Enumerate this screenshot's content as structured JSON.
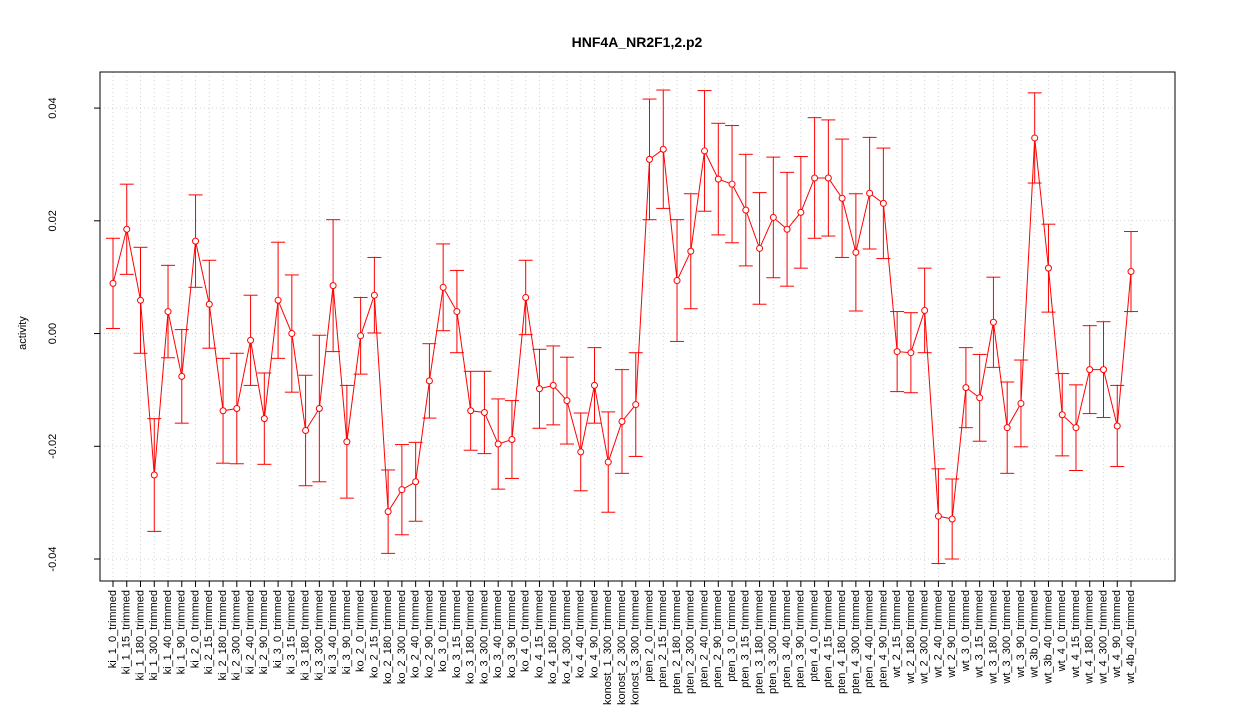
{
  "chart_data": {
    "type": "errorbar-line",
    "title": "HNF4A_NR2F1,2.p2",
    "y_label": "activity",
    "categories": [
      "ki_1_0_trimmed",
      "ki_1_15_trimmed",
      "ki_1_180_trimmed",
      "ki_1_300_trimmed",
      "ki_1_40_trimmed",
      "ki_1_90_trimmed",
      "ki_2_0_trimmed",
      "ki_2_15_trimmed",
      "ki_2_180_trimmed",
      "ki_2_300_trimmed",
      "ki_2_40_trimmed",
      "ki_2_90_trimmed",
      "ki_3_0_trimmed",
      "ki_3_15_trimmed",
      "ki_3_180_trimmed",
      "ki_3_300_trimmed",
      "ki_3_40_trimmed",
      "ki_3_90_trimmed",
      "ko_2_0_trimmed",
      "ko_2_15_trimmed",
      "ko_2_180_trimmed",
      "ko_2_300_trimmed",
      "ko_2_40_trimmed",
      "ko_2_90_trimmed",
      "ko_3_0_trimmed",
      "ko_3_15_trimmed",
      "ko_3_180_trimmed",
      "ko_3_300_trimmed",
      "ko_3_40_trimmed",
      "ko_3_90_trimmed",
      "ko_4_0_trimmed",
      "ko_4_15_trimmed",
      "ko_4_180_trimmed",
      "ko_4_300_trimmed",
      "ko_4_40_trimmed",
      "ko_4_90_trimmed",
      "konost_1_300_trimmed",
      "konost_2_300_trimmed",
      "konost_3_300_trimmed",
      "pten_2_0_trimmed",
      "pten_2_15_trimmed",
      "pten_2_180_trimmed",
      "pten_2_300_trimmed",
      "pten_2_40_trimmed",
      "pten_2_90_trimmed",
      "pten_3_0_trimmed",
      "pten_3_15_trimmed",
      "pten_3_180_trimmed",
      "pten_3_300_trimmed",
      "pten_3_40_trimmed",
      "pten_3_90_trimmed",
      "pten_4_0_trimmed",
      "pten_4_15_trimmed",
      "pten_4_180_trimmed",
      "pten_4_300_trimmed",
      "pten_4_40_trimmed",
      "pten_4_90_trimmed",
      "wt_2_15_trimmed",
      "wt_2_180_trimmed",
      "wt_2_300_trimmed",
      "wt_2_40_trimmed",
      "wt_2_90_trimmed",
      "wt_3_0_trimmed",
      "wt_3_15_trimmed",
      "wt_3_180_trimmed",
      "wt_3_300_trimmed",
      "wt_3_90_trimmed",
      "wt_3b_0_trimmed",
      "wt_3b_40_trimmed",
      "wt_4_0_trimmed",
      "wt_4_15_trimmed",
      "wt_4_180_trimmed",
      "wt_4_300_trimmed",
      "wt_4_90_trimmed",
      "wt_4b_40_trimmed"
    ],
    "values": [
      0.0089,
      0.0185,
      0.0059,
      -0.0251,
      0.0039,
      -0.0076,
      0.0164,
      0.0052,
      -0.0137,
      -0.0133,
      -0.0012,
      -0.0151,
      0.0059,
      0.0,
      -0.0172,
      -0.0133,
      0.0085,
      -0.0192,
      -0.0004,
      0.0068,
      -0.0316,
      -0.0277,
      -0.0263,
      -0.0084,
      0.0082,
      0.0039,
      -0.0137,
      -0.014,
      -0.0196,
      -0.0188,
      0.0064,
      -0.0098,
      -0.0092,
      -0.0119,
      -0.021,
      -0.0092,
      -0.0228,
      -0.0156,
      -0.0126,
      0.0309,
      0.0327,
      0.0094,
      0.0146,
      0.0324,
      0.0274,
      0.0265,
      0.0219,
      0.0151,
      0.0206,
      0.0185,
      0.0215,
      0.0276,
      0.0276,
      0.024,
      0.0144,
      0.0249,
      0.0231,
      -0.0032,
      -0.0034,
      0.0041,
      -0.0324,
      -0.0329,
      -0.0096,
      -0.0114,
      0.002,
      -0.0167,
      -0.0124,
      0.0347,
      0.0116,
      -0.0144,
      -0.0167,
      -0.0064,
      -0.0064,
      -0.0164,
      0.011
    ],
    "errors": [
      0.008,
      0.008,
      0.0094,
      0.01,
      0.0082,
      0.0083,
      0.0082,
      0.0078,
      0.0093,
      0.0098,
      0.008,
      0.0081,
      0.0103,
      0.0104,
      0.0098,
      0.013,
      0.0117,
      0.01,
      0.0068,
      0.0067,
      0.0074,
      0.008,
      0.007,
      0.0066,
      0.0077,
      0.0073,
      0.007,
      0.0073,
      0.008,
      0.0069,
      0.0066,
      0.007,
      0.007,
      0.0077,
      0.0069,
      0.0067,
      0.0089,
      0.0092,
      0.0092,
      0.0107,
      0.0105,
      0.0108,
      0.0102,
      0.0107,
      0.0099,
      0.0104,
      0.0099,
      0.0099,
      0.0107,
      0.0101,
      0.0099,
      0.0107,
      0.0103,
      0.0105,
      0.0104,
      0.0099,
      0.0098,
      0.0071,
      0.0071,
      0.0075,
      0.0084,
      0.0071,
      0.0071,
      0.0077,
      0.008,
      0.0081,
      0.0077,
      0.008,
      0.0078,
      0.0073,
      0.0076,
      0.0078,
      0.0085,
      0.0072,
      0.0071
    ],
    "color": "#ff0000",
    "ylim": [
      -0.0439,
      0.0464
    ],
    "yticks": [
      -0.04,
      -0.02,
      {
        "value": 0,
        "label": "0.00"
      },
      0.02,
      0.04
    ],
    "grid": true
  }
}
